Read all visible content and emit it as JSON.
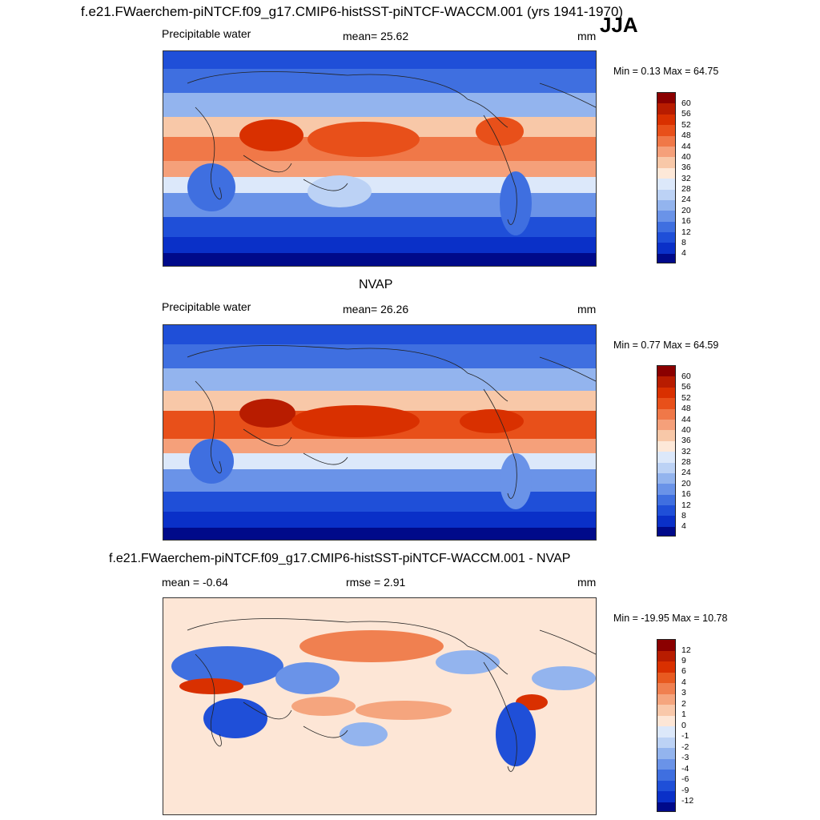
{
  "header": {
    "title": "f.e21.FWaerchem-piNTCF.f09_g17.CMIP6-histSST-piNTCF-WACCM.001 (yrs 1941-1970)",
    "season": "JJA"
  },
  "panel1": {
    "var_label": "Precipitable water",
    "mean_text": "mean=  25.62",
    "units": "mm",
    "minmax": "Min =   0.13 Max =  64.75",
    "colorbar_labels": [
      "60",
      "56",
      "52",
      "48",
      "44",
      "40",
      "36",
      "32",
      "28",
      "24",
      "20",
      "16",
      "12",
      "8",
      "4"
    ]
  },
  "panel2": {
    "title": "NVAP",
    "var_label": "Precipitable water",
    "mean_text": "mean=  26.26",
    "units": "mm",
    "minmax": "Min =   0.77 Max =  64.59",
    "colorbar_labels": [
      "60",
      "56",
      "52",
      "48",
      "44",
      "40",
      "36",
      "32",
      "28",
      "24",
      "20",
      "16",
      "12",
      "8",
      "4"
    ]
  },
  "panel3": {
    "title": "f.e21.FWaerchem-piNTCF.f09_g17.CMIP6-histSST-piNTCF-WACCM.001 - NVAP",
    "mean_text": "mean =  -0.64",
    "rmse_text": "rmse =   2.91",
    "units": "mm",
    "minmax": "Min = -19.95 Max =  10.78",
    "colorbar_labels": [
      "12",
      "9",
      "6",
      "4",
      "3",
      "2",
      "1",
      "0",
      "-1",
      "-2",
      "-3",
      "-4",
      "-6",
      "-9",
      "-12"
    ]
  },
  "colors": {
    "seq_scale": [
      "#8b0000",
      "#b81c00",
      "#d93000",
      "#e8501a",
      "#f07848",
      "#f5a07a",
      "#f8c8a8",
      "#fde8d8",
      "#dce8fa",
      "#bcd2f5",
      "#93b4ee",
      "#6a93e8",
      "#3f6fe0",
      "#1f4fd8",
      "#0a30c8",
      "#000a8a"
    ],
    "diff_scale": [
      "#8b0000",
      "#b81c00",
      "#d93000",
      "#e85a20",
      "#f08050",
      "#f5a57e",
      "#f9c8aa",
      "#fde6d6",
      "#dce8fa",
      "#bcd2f5",
      "#93b4ee",
      "#6a93e8",
      "#3f6fe0",
      "#1f4fd8",
      "#0a30c8",
      "#000a8a"
    ]
  }
}
